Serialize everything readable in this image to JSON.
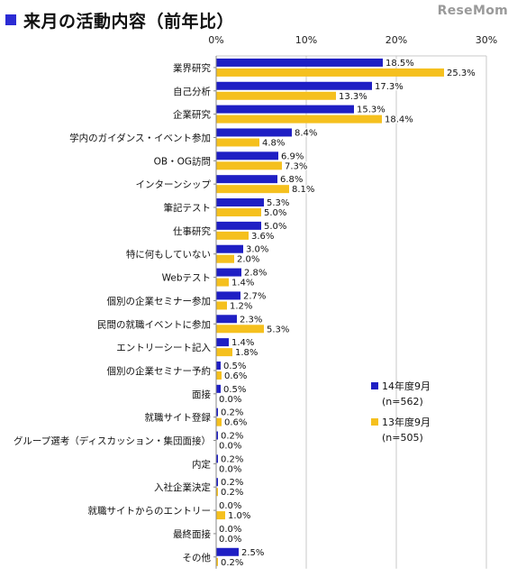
{
  "title": "来月の活動内容（前年比）",
  "watermark": "ReseMom",
  "chart_data": {
    "type": "bar",
    "orientation": "horizontal",
    "categories": [
      "業界研究",
      "自己分析",
      "企業研究",
      "学内のガイダンス・イベント参加",
      "OB・OG訪問",
      "インターンシップ",
      "筆記テスト",
      "仕事研究",
      "特に何もしていない",
      "Webテスト",
      "個別の企業セミナー参加",
      "民間の就職イベントに参加",
      "エントリーシート記入",
      "個別の企業セミナー予約",
      "面接",
      "就職サイト登録",
      "グループ選考（ディスカッション・集団面接）",
      "内定",
      "入社企業決定",
      "就職サイトからのエントリー",
      "最終面接",
      "その他"
    ],
    "series": [
      {
        "name": "14年度9月",
        "color": "#1f1fc4",
        "values": [
          18.5,
          17.3,
          15.3,
          8.4,
          6.9,
          6.8,
          5.3,
          5.0,
          3.0,
          2.8,
          2.7,
          2.3,
          1.4,
          0.5,
          0.5,
          0.2,
          0.2,
          0.2,
          0.2,
          0.0,
          0.0,
          2.5
        ]
      },
      {
        "name": "13年度9月",
        "color": "#f5c01e",
        "values": [
          25.3,
          13.3,
          18.4,
          4.8,
          7.3,
          8.1,
          5.0,
          3.6,
          2.0,
          1.4,
          1.2,
          5.3,
          1.8,
          0.6,
          0.0,
          0.6,
          0.0,
          0.0,
          0.2,
          1.0,
          0.0,
          0.2
        ]
      }
    ],
    "xlim": [
      0,
      30
    ],
    "xticks": [
      "0%",
      "10%",
      "20%",
      "30%"
    ],
    "value_suffix": "%",
    "legend": [
      {
        "label": "14年度9月",
        "note": "(n=562)"
      },
      {
        "label": "13年度9月",
        "note": "(n=505)"
      }
    ],
    "legend_position": "bottom-right",
    "grid": true
  }
}
